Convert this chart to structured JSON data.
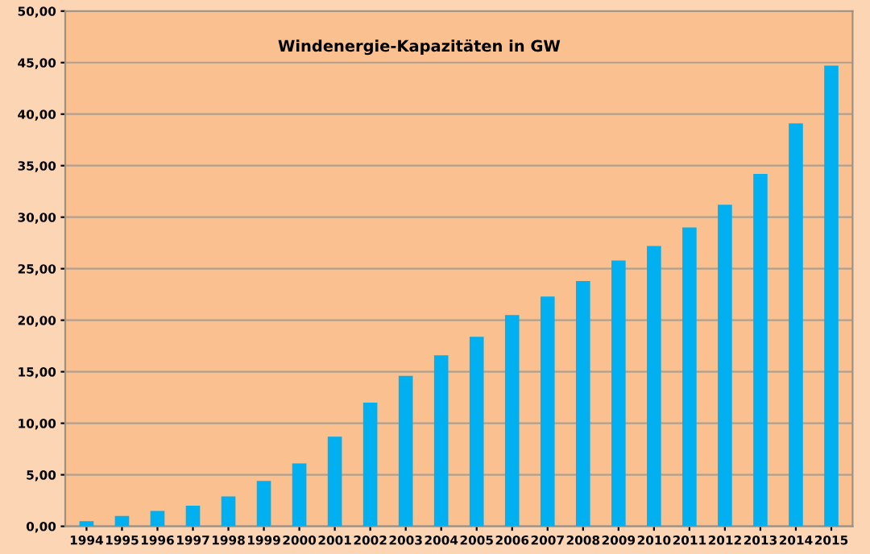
{
  "chart_data": {
    "type": "bar",
    "title": "Windenergie-Kapazitäten in GW",
    "categories": [
      "1994",
      "1995",
      "1996",
      "1997",
      "1998",
      "1999",
      "2000",
      "2001",
      "2002",
      "2003",
      "2004",
      "2005",
      "2006",
      "2007",
      "2008",
      "2009",
      "2010",
      "2011",
      "2012",
      "2013",
      "2014",
      "2015"
    ],
    "values": [
      0.5,
      1.0,
      1.5,
      2.0,
      2.9,
      4.4,
      6.1,
      8.7,
      12.0,
      14.6,
      16.6,
      18.4,
      20.5,
      22.3,
      23.8,
      25.8,
      27.2,
      29.0,
      31.2,
      34.2,
      39.1,
      44.7
    ],
    "color": "#00b0f0",
    "ylim": [
      0,
      50
    ],
    "yticks": [
      {
        "value": 0,
        "label": "0,00"
      },
      {
        "value": 5,
        "label": "5,00"
      },
      {
        "value": 10,
        "label": "10,00"
      },
      {
        "value": 15,
        "label": "15,00"
      },
      {
        "value": 20,
        "label": "20,00"
      },
      {
        "value": 25,
        "label": "25,00"
      },
      {
        "value": 30,
        "label": "30,00"
      },
      {
        "value": 35,
        "label": "35,00"
      },
      {
        "value": 40,
        "label": "40,00"
      },
      {
        "value": 45,
        "label": "45,00"
      },
      {
        "value": 50,
        "label": "50,00"
      }
    ],
    "grid": "y"
  }
}
